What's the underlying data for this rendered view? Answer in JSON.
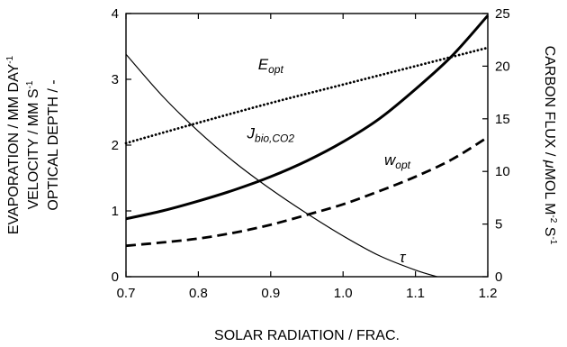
{
  "chart_data": {
    "type": "line",
    "title": "",
    "xlabel": "SOLAR RADIATION / FRAC.",
    "ylabel_left_lines": [
      "EVAPORATION / MM DAY",
      "VELOCITY / MM S",
      "OPTICAL DEPTH / -"
    ],
    "ylabel_left_sup": [
      "-1",
      "-1",
      ""
    ],
    "ylabel_right": {
      "a": "CARBON FLUX / ",
      "mu": "μ",
      "b": "MOL M",
      "sup1": "-2",
      "c": " S",
      "sup2": "-1"
    },
    "xlim": [
      0.7,
      1.2
    ],
    "ylim_left": [
      0,
      4
    ],
    "ylim_right": [
      0,
      25
    ],
    "x_ticks": [
      0.7,
      0.8,
      0.9,
      1.0,
      1.1,
      1.2
    ],
    "x_tick_labels": [
      "0.7",
      "0.8",
      "0.9",
      "1.0",
      "1.1",
      "1.2"
    ],
    "y_left_ticks": [
      0,
      1,
      2,
      3,
      4
    ],
    "y_left_tick_labels": [
      "0",
      "1",
      "2",
      "3",
      "4"
    ],
    "y_right_ticks": [
      0,
      5,
      10,
      15,
      20,
      25
    ],
    "y_right_tick_labels": [
      "0",
      "5",
      "10",
      "15",
      "20",
      "25"
    ],
    "grid": false,
    "series": [
      {
        "key": "E_opt",
        "label_main": "E",
        "label_sub": "opt",
        "axis": "left",
        "style": "dotted",
        "color": "#000000",
        "x": [
          0.7,
          0.8,
          0.9,
          1.0,
          1.1,
          1.2
        ],
        "y": [
          2.03,
          2.34,
          2.64,
          2.92,
          3.2,
          3.48
        ],
        "label_pos": [
          0.9,
          3.15
        ]
      },
      {
        "key": "J_bio_CO2",
        "label_main": "J",
        "label_sub": "bio,CO2",
        "axis": "left",
        "style": "bold",
        "color": "#000000",
        "x": [
          0.7,
          0.75,
          0.8,
          0.85,
          0.9,
          0.95,
          1.0,
          1.05,
          1.1,
          1.15,
          1.2
        ],
        "y": [
          0.88,
          1.0,
          1.15,
          1.32,
          1.52,
          1.76,
          2.05,
          2.4,
          2.85,
          3.35,
          3.97
        ],
        "label_pos": [
          0.9,
          2.1
        ]
      },
      {
        "key": "w_opt",
        "label_main": "w",
        "label_sub": "opt",
        "axis": "left",
        "style": "dashed",
        "color": "#000000",
        "x": [
          0.7,
          0.75,
          0.8,
          0.85,
          0.9,
          0.95,
          1.0,
          1.05,
          1.1,
          1.15,
          1.2
        ],
        "y": [
          0.47,
          0.52,
          0.58,
          0.67,
          0.79,
          0.94,
          1.1,
          1.3,
          1.52,
          1.78,
          2.12
        ],
        "label_pos": [
          1.075,
          1.7
        ]
      },
      {
        "key": "tau",
        "label_main": "τ",
        "label_sub": "",
        "axis": "left",
        "style": "thin",
        "color": "#000000",
        "x": [
          0.7,
          0.75,
          0.8,
          0.85,
          0.9,
          0.95,
          1.0,
          1.05,
          1.1,
          1.13
        ],
        "y": [
          3.38,
          2.75,
          2.21,
          1.74,
          1.33,
          0.96,
          0.62,
          0.32,
          0.1,
          0.0
        ],
        "label_pos": [
          1.082,
          0.22
        ]
      }
    ]
  }
}
